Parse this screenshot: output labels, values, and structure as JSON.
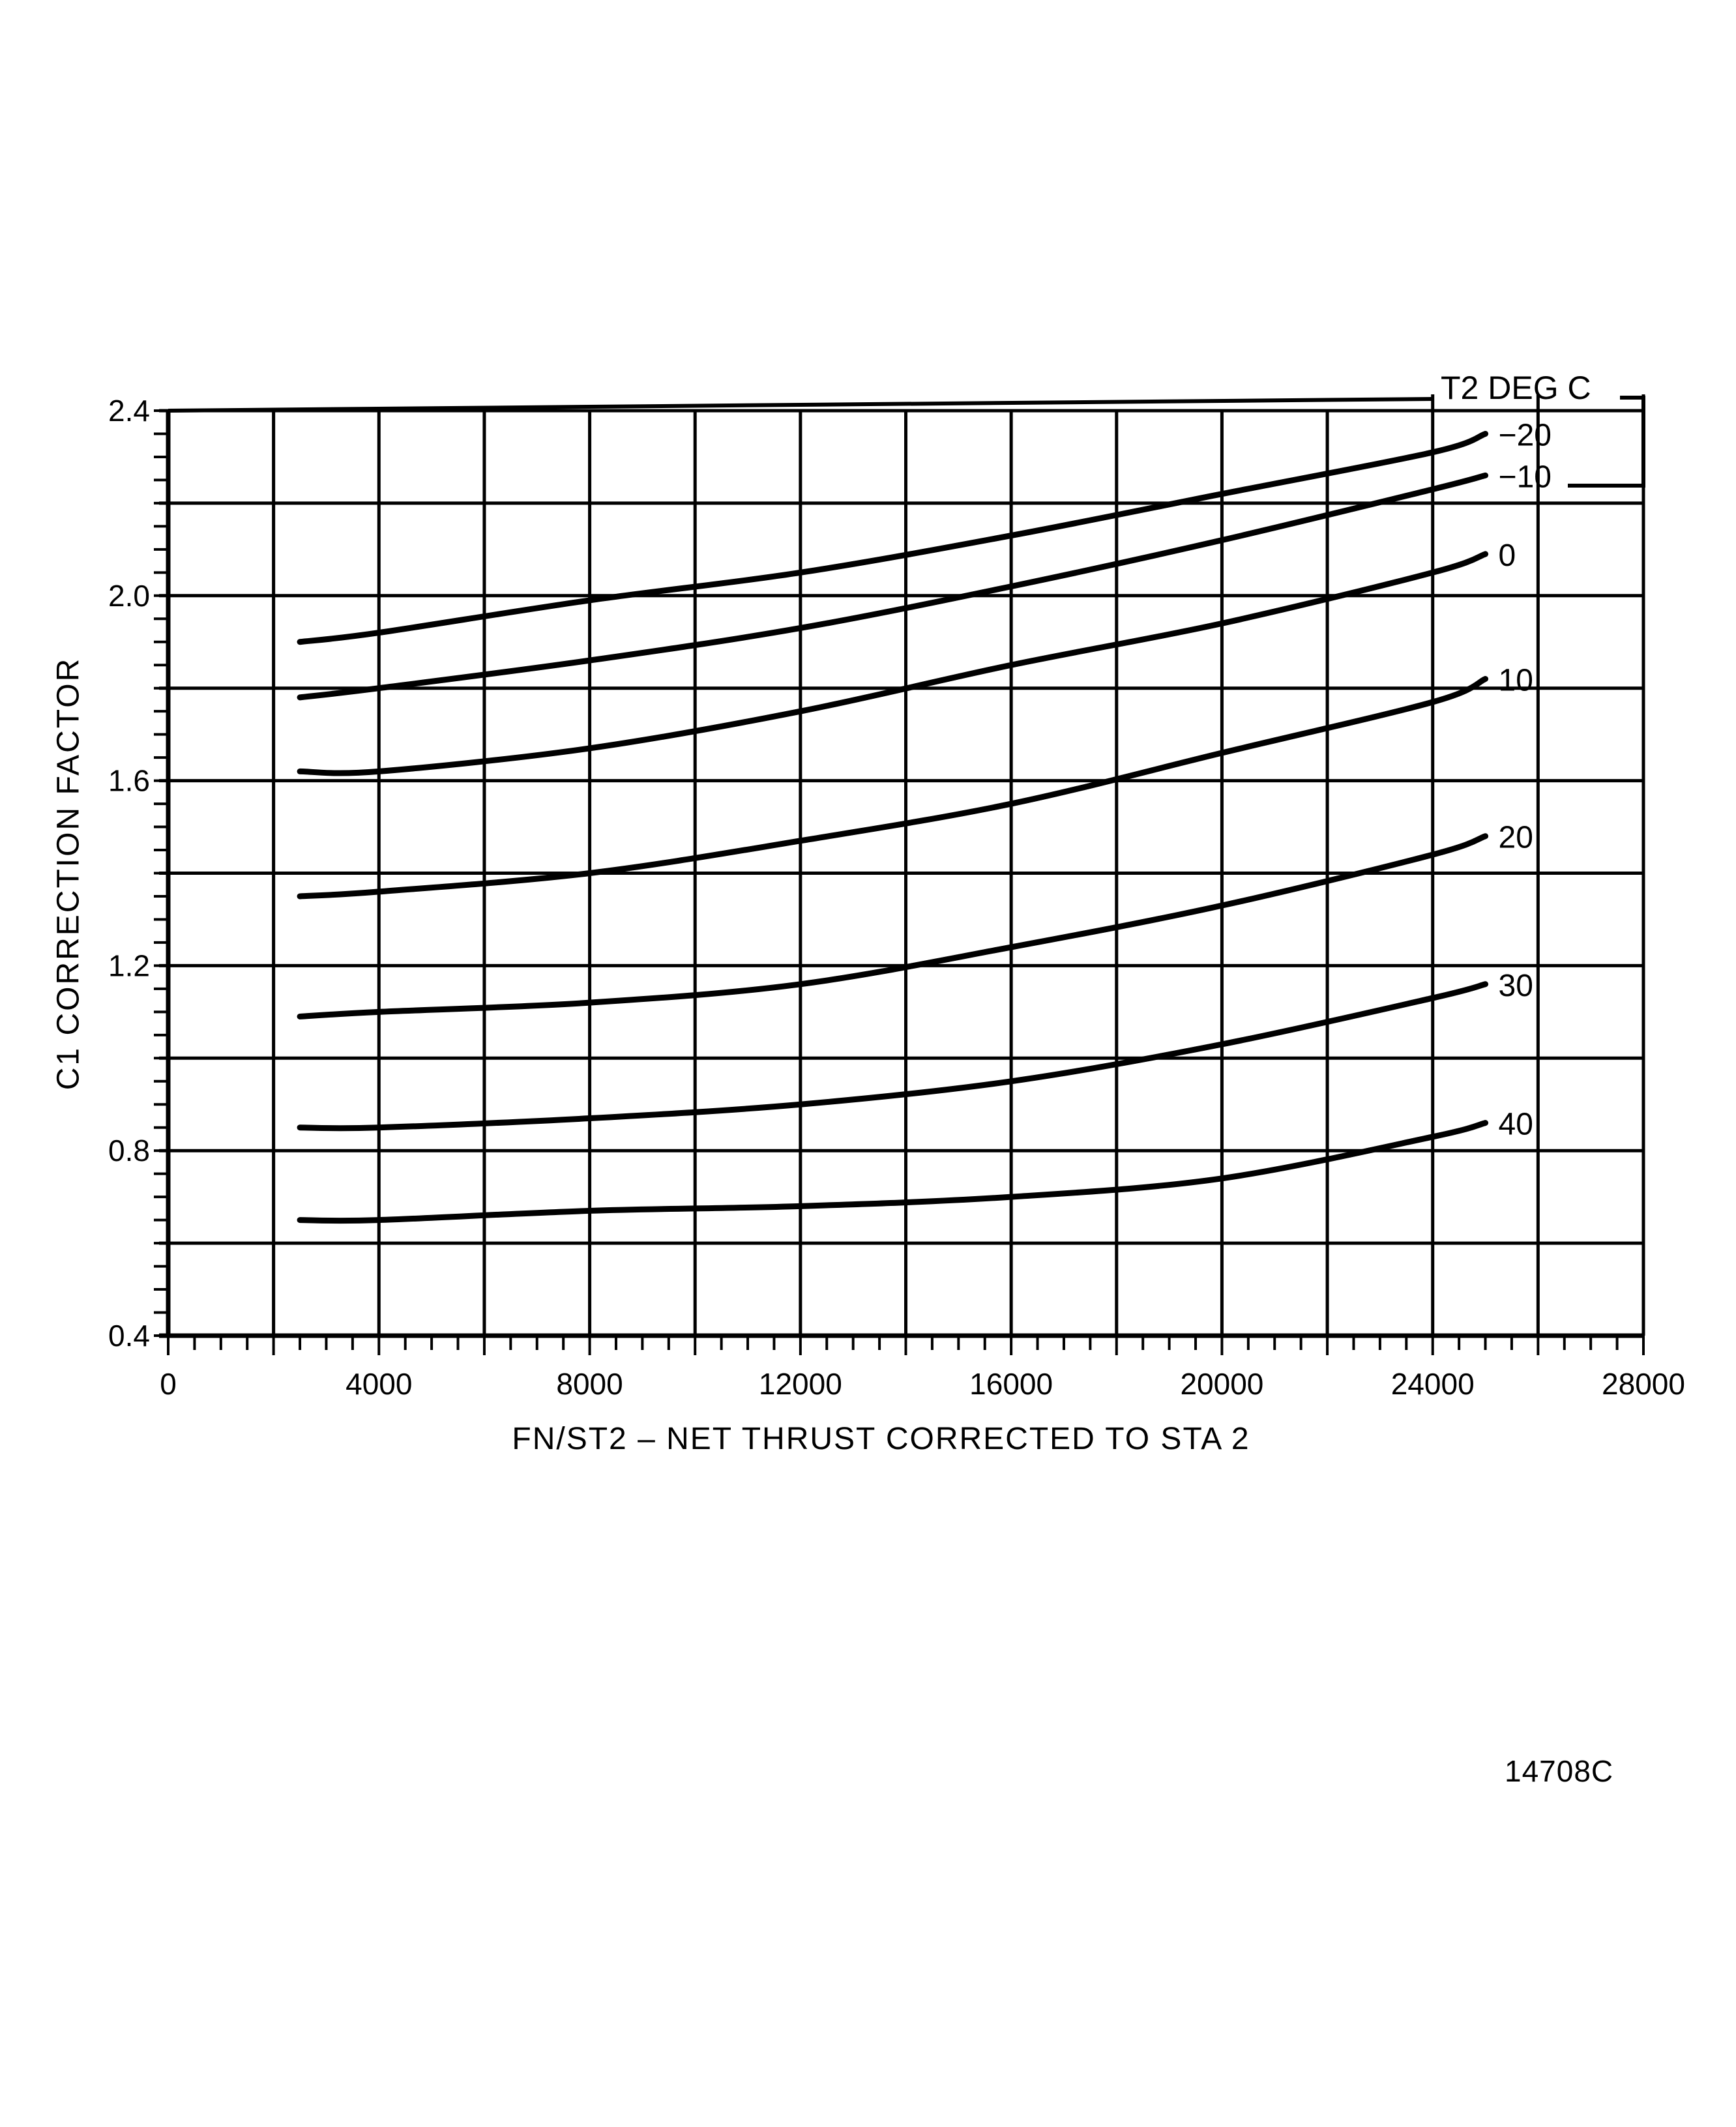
{
  "chart_data": {
    "type": "line",
    "title": "",
    "xlabel": "FN/ST2 – NET THRUST CORRECTED TO STA 2",
    "ylabel": "C1 CORRECTION FACTOR",
    "xlim": [
      0,
      28000
    ],
    "ylim": [
      0.4,
      2.4
    ],
    "x_ticks": [
      0,
      4000,
      8000,
      12000,
      16000,
      20000,
      24000,
      28000
    ],
    "x_tick_labels": [
      "0",
      "4000",
      "8000",
      "12000",
      "16000",
      "20000",
      "24000",
      "28000"
    ],
    "y_ticks": [
      0.4,
      0.8,
      1.2,
      1.6,
      2.0,
      2.4
    ],
    "y_tick_labels": [
      "0.4",
      "0.8",
      "1.2",
      "1.6",
      "2.0",
      "2.4"
    ],
    "x_grid_step": 2000,
    "y_grid_step": 0.2,
    "grid": true,
    "legend_title": "T2 DEG C",
    "legend_position": "right-inline",
    "x": [
      2500,
      4000,
      8000,
      12000,
      16000,
      20000,
      24000,
      25000
    ],
    "series": [
      {
        "name": "-20",
        "label": "−20",
        "values": [
          1.9,
          1.92,
          1.99,
          2.05,
          2.13,
          2.22,
          2.31,
          2.35
        ]
      },
      {
        "name": "-10",
        "label": "−10",
        "values": [
          1.78,
          1.8,
          1.86,
          1.93,
          2.02,
          2.12,
          2.23,
          2.26
        ]
      },
      {
        "name": "0",
        "label": "0",
        "values": [
          1.62,
          1.62,
          1.67,
          1.75,
          1.85,
          1.94,
          2.05,
          2.09
        ]
      },
      {
        "name": "10",
        "label": "10",
        "values": [
          1.35,
          1.36,
          1.4,
          1.47,
          1.55,
          1.66,
          1.77,
          1.82
        ]
      },
      {
        "name": "20",
        "label": "20",
        "values": [
          1.09,
          1.1,
          1.12,
          1.16,
          1.24,
          1.33,
          1.44,
          1.48
        ]
      },
      {
        "name": "30",
        "label": "30",
        "values": [
          0.85,
          0.85,
          0.87,
          0.9,
          0.95,
          1.03,
          1.13,
          1.16
        ]
      },
      {
        "name": "40",
        "label": "40",
        "values": [
          0.65,
          0.65,
          0.67,
          0.68,
          0.7,
          0.74,
          0.83,
          0.86
        ]
      }
    ]
  },
  "figure": {
    "id": "14708C"
  }
}
